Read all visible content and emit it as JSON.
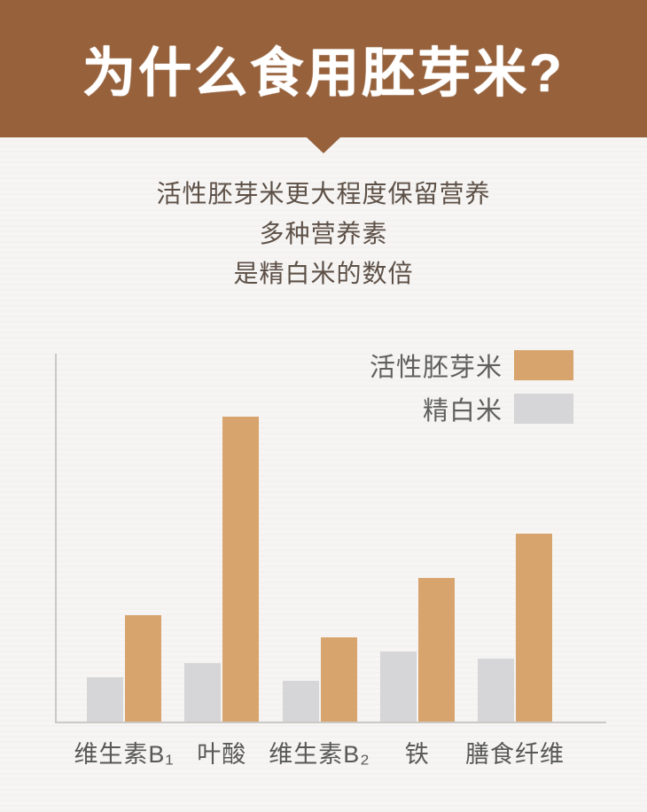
{
  "page": {
    "background_color": "#f6f5f3"
  },
  "header": {
    "title": "为什么食用胚芽米?",
    "banner_color": "#96613b",
    "text_color": "#ffffff"
  },
  "intro": {
    "lines": [
      "活性胚芽米更大程度保留营养",
      "多种营养素",
      "是精白米的数倍"
    ],
    "text_color": "#5d5047"
  },
  "chart_data": {
    "type": "bar",
    "categories": [
      "维生素B₁",
      "叶酸",
      "维生素B₂",
      "铁",
      "膳食纤维"
    ],
    "series": [
      {
        "name": "活性胚芽米",
        "color": "#d8a46e",
        "values": [
          29,
          83,
          23,
          39,
          51
        ]
      },
      {
        "name": "精白米",
        "color": "#d6d5d7",
        "values": [
          12,
          16,
          11,
          19,
          17
        ]
      }
    ],
    "title": "",
    "xlabel": "",
    "ylabel": "",
    "ylim": [
      0,
      100
    ],
    "value_units": "relative height, % of plot area (no numeric axis labels shown)",
    "grid": false,
    "legend_position": "top-right",
    "axis_color": "#cbc9c6",
    "bar_order_in_group": [
      "精白米",
      "活性胚芽米"
    ]
  }
}
